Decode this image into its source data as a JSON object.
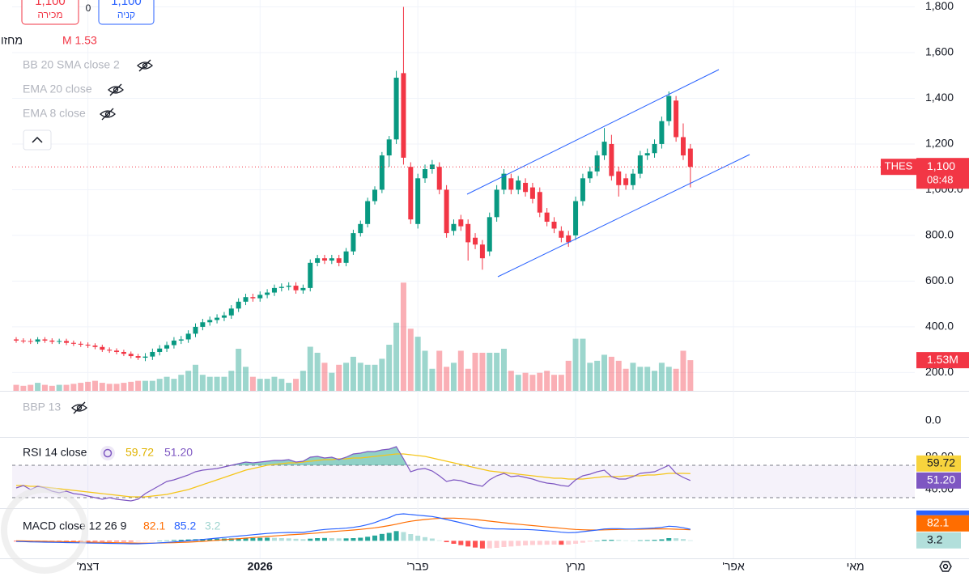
{
  "toolbar": {
    "sell_price": "1,100",
    "sell_label": "מכירה",
    "spread": "0",
    "buy_price": "1,100",
    "buy_label": "קניה"
  },
  "chart_data": [
    {
      "type": "candlestick",
      "symbol": "THES",
      "last_price_label": "1,100",
      "countdown": "08:48",
      "volume_name": "מחזור",
      "volume_legend": "M 1.53",
      "volume_tag": "1.53M",
      "hidden_indicators": [
        "BB 20 SMA close 2",
        "EMA 20 close",
        "EMA 8 close"
      ],
      "up_color": "#089981",
      "down_color": "#f23645",
      "grid": true,
      "ylim": [
        120,
        1830
      ],
      "volume_ylim": [
        0,
        19.5
      ],
      "yticks": [
        {
          "value": 200,
          "label": "200.0"
        },
        {
          "value": 400,
          "label": "400.0"
        },
        {
          "value": 600,
          "label": "600.0"
        },
        {
          "value": 800,
          "label": "800.0"
        },
        {
          "value": 1000,
          "label": "1,000.0"
        },
        {
          "value": 1200,
          "label": "1,200"
        },
        {
          "value": 1400,
          "label": "1,400"
        },
        {
          "value": 1600,
          "label": "1,600"
        },
        {
          "value": 1800,
          "label": "1,800"
        }
      ],
      "xticks": [
        {
          "value": 10,
          "label": "דצמ'"
        },
        {
          "value": 34,
          "label": "2026"
        },
        {
          "value": 56,
          "label": "פבר'"
        },
        {
          "value": 78,
          "label": "מרץ"
        },
        {
          "value": 100,
          "label": "אפר'"
        },
        {
          "value": 117,
          "label": "מאי"
        }
      ],
      "open": [
        345,
        340,
        338,
        335,
        345,
        340,
        335,
        338,
        330,
        326,
        322,
        318,
        312,
        300,
        296,
        290,
        282,
        272,
        265,
        270,
        290,
        305,
        320,
        340,
        345,
        370,
        400,
        420,
        430,
        440,
        450,
        480,
        510,
        530,
        525,
        540,
        550,
        570,
        575,
        580,
        560,
        570,
        680,
        700,
        690,
        700,
        680,
        730,
        810,
        850,
        950,
        1000,
        1150,
        1220,
        1510,
        1100,
        850,
        1050,
        1090,
        1100,
        1000,
        820,
        870,
        850,
        790,
        760,
        730,
        880,
        1000,
        1050,
        1000,
        1030,
        1010,
        990,
        900,
        860,
        820,
        800,
        800,
        950,
        1050,
        1080,
        1150,
        1200,
        1080,
        1050,
        1020,
        1070,
        1150,
        1160,
        1200,
        1300,
        1390,
        1230,
        1180
      ],
      "high": [
        355,
        350,
        348,
        355,
        355,
        350,
        348,
        348,
        340,
        336,
        332,
        328,
        322,
        310,
        306,
        300,
        292,
        282,
        285,
        305,
        320,
        335,
        355,
        360,
        385,
        415,
        435,
        445,
        455,
        465,
        495,
        525,
        545,
        545,
        555,
        565,
        585,
        590,
        595,
        595,
        585,
        695,
        715,
        715,
        715,
        715,
        745,
        825,
        865,
        965,
        1015,
        1165,
        1235,
        1520,
        1800,
        1120,
        1070,
        1110,
        1130,
        1120,
        1020,
        870,
        890,
        870,
        810,
        780,
        900,
        1020,
        1090,
        1070,
        1060,
        1050,
        1030,
        1010,
        920,
        880,
        840,
        820,
        970,
        1070,
        1100,
        1170,
        1270,
        1240,
        1100,
        1070,
        1090,
        1170,
        1180,
        1220,
        1320,
        1430,
        1410,
        1290,
        1200
      ],
      "low": [
        330,
        328,
        325,
        325,
        330,
        325,
        325,
        320,
        316,
        312,
        308,
        302,
        290,
        286,
        280,
        272,
        262,
        255,
        250,
        255,
        275,
        290,
        305,
        325,
        330,
        355,
        385,
        405,
        415,
        425,
        435,
        465,
        495,
        510,
        510,
        525,
        535,
        555,
        560,
        545,
        545,
        555,
        665,
        675,
        675,
        665,
        665,
        715,
        795,
        835,
        935,
        985,
        1100,
        1200,
        1110,
        850,
        830,
        1030,
        1070,
        980,
        790,
        800,
        820,
        690,
        740,
        650,
        710,
        860,
        980,
        980,
        980,
        970,
        940,
        880,
        840,
        810,
        770,
        750,
        780,
        930,
        1030,
        1060,
        1130,
        1040,
        970,
        1000,
        1000,
        1050,
        1130,
        1140,
        1180,
        1280,
        1210,
        1130,
        1010
      ],
      "close": [
        340,
        338,
        335,
        345,
        340,
        335,
        338,
        330,
        326,
        322,
        318,
        312,
        300,
        296,
        290,
        282,
        272,
        265,
        270,
        290,
        305,
        320,
        340,
        345,
        370,
        400,
        420,
        430,
        440,
        450,
        480,
        510,
        530,
        525,
        540,
        550,
        570,
        575,
        580,
        560,
        570,
        680,
        700,
        690,
        700,
        680,
        730,
        810,
        850,
        950,
        1000,
        1150,
        1220,
        1490,
        1140,
        870,
        1050,
        1090,
        1110,
        1000,
        810,
        850,
        840,
        770,
        760,
        700,
        880,
        1000,
        1070,
        1000,
        1040,
        990,
        960,
        900,
        860,
        830,
        790,
        770,
        950,
        1050,
        1080,
        1150,
        1210,
        1060,
        1020,
        1020,
        1070,
        1150,
        1160,
        1200,
        1300,
        1410,
        1230,
        1150,
        1100
      ],
      "volume": [
        0.3,
        0.25,
        0.3,
        0.4,
        0.3,
        0.25,
        0.3,
        0.3,
        0.35,
        0.4,
        0.45,
        0.5,
        0.4,
        0.35,
        0.35,
        0.4,
        0.45,
        0.5,
        0.5,
        0.5,
        0.6,
        0.7,
        0.6,
        0.8,
        1.0,
        1.3,
        0.8,
        0.7,
        0.7,
        0.7,
        1.0,
        2.1,
        1.2,
        0.7,
        0.6,
        0.6,
        0.7,
        0.6,
        0.4,
        0.6,
        1.0,
        2.2,
        1.9,
        1.4,
        0.9,
        1.3,
        1.4,
        1.7,
        1.4,
        1.3,
        1.3,
        1.6,
        2.3,
        3.4,
        5.4,
        3.1,
        2.7,
        2.0,
        1.1,
        2.0,
        1.2,
        1.4,
        2.0,
        1.1,
        1.9,
        1.9,
        1.9,
        1.9,
        2.1,
        1.0,
        0.8,
        0.9,
        0.8,
        0.9,
        1.0,
        0.8,
        0.8,
        1.5,
        2.6,
        2.6,
        1.4,
        1.5,
        1.8,
        1.7,
        1.5,
        1.1,
        1.4,
        1.2,
        1.2,
        1.0,
        1.4,
        1.2,
        1.1,
        2.0,
        1.53
      ]
    },
    {
      "type": "indicator",
      "name": "BBP 13",
      "ylim": [
        -1,
        1.8
      ],
      "yticks": [
        {
          "value": 0,
          "label": "0.0"
        }
      ]
    },
    {
      "type": "line",
      "name": "RSI 14 close",
      "ylim": [
        17,
        105
      ],
      "bands": [
        30,
        70
      ],
      "yticks": [
        {
          "value": 40,
          "label": "40.00"
        },
        {
          "value": 80,
          "label": "80.00"
        }
      ],
      "series": [
        {
          "color": "#7e57c2",
          "last_label": "51.20",
          "values": [
            42,
            45,
            40,
            44,
            42,
            38,
            36,
            38,
            35,
            34,
            32,
            30,
            28,
            30,
            28,
            27,
            26,
            28,
            35,
            40,
            45,
            50,
            52,
            55,
            58,
            62,
            64,
            65,
            66,
            68,
            70,
            72,
            74,
            73,
            74,
            75,
            76,
            76,
            77,
            74,
            75,
            80,
            81,
            79,
            80,
            77,
            80,
            84,
            85,
            87,
            87,
            89,
            90,
            93,
            78,
            62,
            65,
            66,
            63,
            57,
            50,
            52,
            51,
            48,
            46,
            44,
            52,
            57,
            60,
            56,
            57,
            55,
            53,
            50,
            48,
            47,
            45,
            44,
            52,
            57,
            59,
            62,
            64,
            56,
            53,
            53,
            56,
            60,
            61,
            62,
            66,
            70,
            60,
            55,
            51.2
          ]
        },
        {
          "color": "#f5c518",
          "values": [
            45,
            45,
            44,
            44,
            43,
            42,
            41,
            40,
            39,
            38,
            37,
            36,
            35,
            34,
            33,
            32,
            31,
            31,
            31,
            32,
            33,
            34,
            36,
            38,
            40,
            43,
            46,
            49,
            52,
            55,
            58,
            61,
            64,
            66,
            68,
            70,
            71,
            72,
            73,
            73,
            74,
            75,
            76,
            77,
            77,
            78,
            78,
            79,
            79,
            80,
            81,
            82,
            83,
            84,
            84,
            83,
            82,
            81,
            79,
            77,
            75,
            73,
            71,
            69,
            67,
            65,
            63,
            62,
            61,
            60,
            59,
            58,
            57,
            56,
            55,
            54,
            54,
            53,
            53,
            53,
            54,
            55,
            56,
            56,
            56,
            57,
            57,
            57,
            58,
            58,
            59,
            60,
            60,
            60,
            59.72
          ]
        }
      ]
    },
    {
      "type": "macd",
      "name": "MACD close 12 26 9",
      "ylim": [
        -130,
        242
      ],
      "series": [
        {
          "color": "#ff6d00",
          "values": [
            0,
            -1,
            -2,
            -3,
            -4,
            -5,
            -6,
            -7,
            -8,
            -9,
            -10,
            -11,
            -12,
            -13,
            -14,
            -15,
            -16,
            -17,
            -17,
            -17,
            -16,
            -15,
            -14,
            -12,
            -10,
            -7,
            -4,
            0,
            4,
            8,
            12,
            16,
            20,
            24,
            28,
            32,
            36,
            40,
            44,
            47,
            50,
            54,
            58,
            63,
            68,
            72,
            76,
            80,
            85,
            90,
            96,
            104,
            113,
            123,
            135,
            145,
            152,
            158,
            163,
            167,
            168,
            168,
            166,
            162,
            158,
            152,
            146,
            140,
            134,
            128,
            123,
            118,
            113,
            108,
            103,
            98,
            93,
            88,
            84,
            82,
            80,
            80,
            81,
            83,
            84,
            85,
            86,
            86,
            87,
            88,
            89,
            88,
            86,
            84,
            82.1
          ]
        },
        {
          "color": "#2962ff",
          "values": [
            -5,
            -6,
            -8,
            -9,
            -10,
            -11,
            -12,
            -13,
            -14,
            -15,
            -16,
            -17,
            -18,
            -19,
            -20,
            -21,
            -22,
            -22,
            -20,
            -18,
            -15,
            -12,
            -8,
            -4,
            0,
            5,
            10,
            15,
            20,
            25,
            30,
            35,
            40,
            45,
            50,
            55,
            58,
            60,
            62,
            62,
            62,
            70,
            78,
            84,
            88,
            90,
            94,
            100,
            108,
            120,
            135,
            155,
            172,
            195,
            200,
            195,
            190,
            185,
            180,
            170,
            158,
            146,
            134,
            120,
            108,
            95,
            90,
            88,
            88,
            86,
            85,
            84,
            82,
            78,
            74,
            70,
            64,
            60,
            62,
            68,
            74,
            80,
            88,
            90,
            90,
            88,
            88,
            90,
            92,
            95,
            100,
            108,
            105,
            97,
            85.2
          ]
        }
      ],
      "histogram": [
        -5,
        -5,
        -6,
        -6,
        -6,
        -6,
        -6,
        -6,
        -6,
        -6,
        -6,
        -6,
        -6,
        -6,
        -6,
        -6,
        -6,
        -5,
        -3,
        -1,
        1,
        3,
        6,
        8,
        10,
        12,
        14,
        15,
        16,
        17,
        18,
        19,
        20,
        21,
        22,
        23,
        22,
        20,
        18,
        15,
        12,
        16,
        20,
        21,
        20,
        18,
        18,
        20,
        23,
        30,
        39,
        51,
        59,
        72,
        65,
        50,
        38,
        27,
        17,
        3,
        -10,
        -22,
        -32,
        -42,
        -50,
        -57,
        -56,
        -52,
        -46,
        -42,
        -38,
        -34,
        -31,
        -30,
        -29,
        -28,
        -29,
        -28,
        -22,
        -14,
        -6,
        0,
        7,
        7,
        6,
        3,
        2,
        4,
        5,
        7,
        11,
        20,
        19,
        13,
        3.2
      ]
    }
  ]
}
